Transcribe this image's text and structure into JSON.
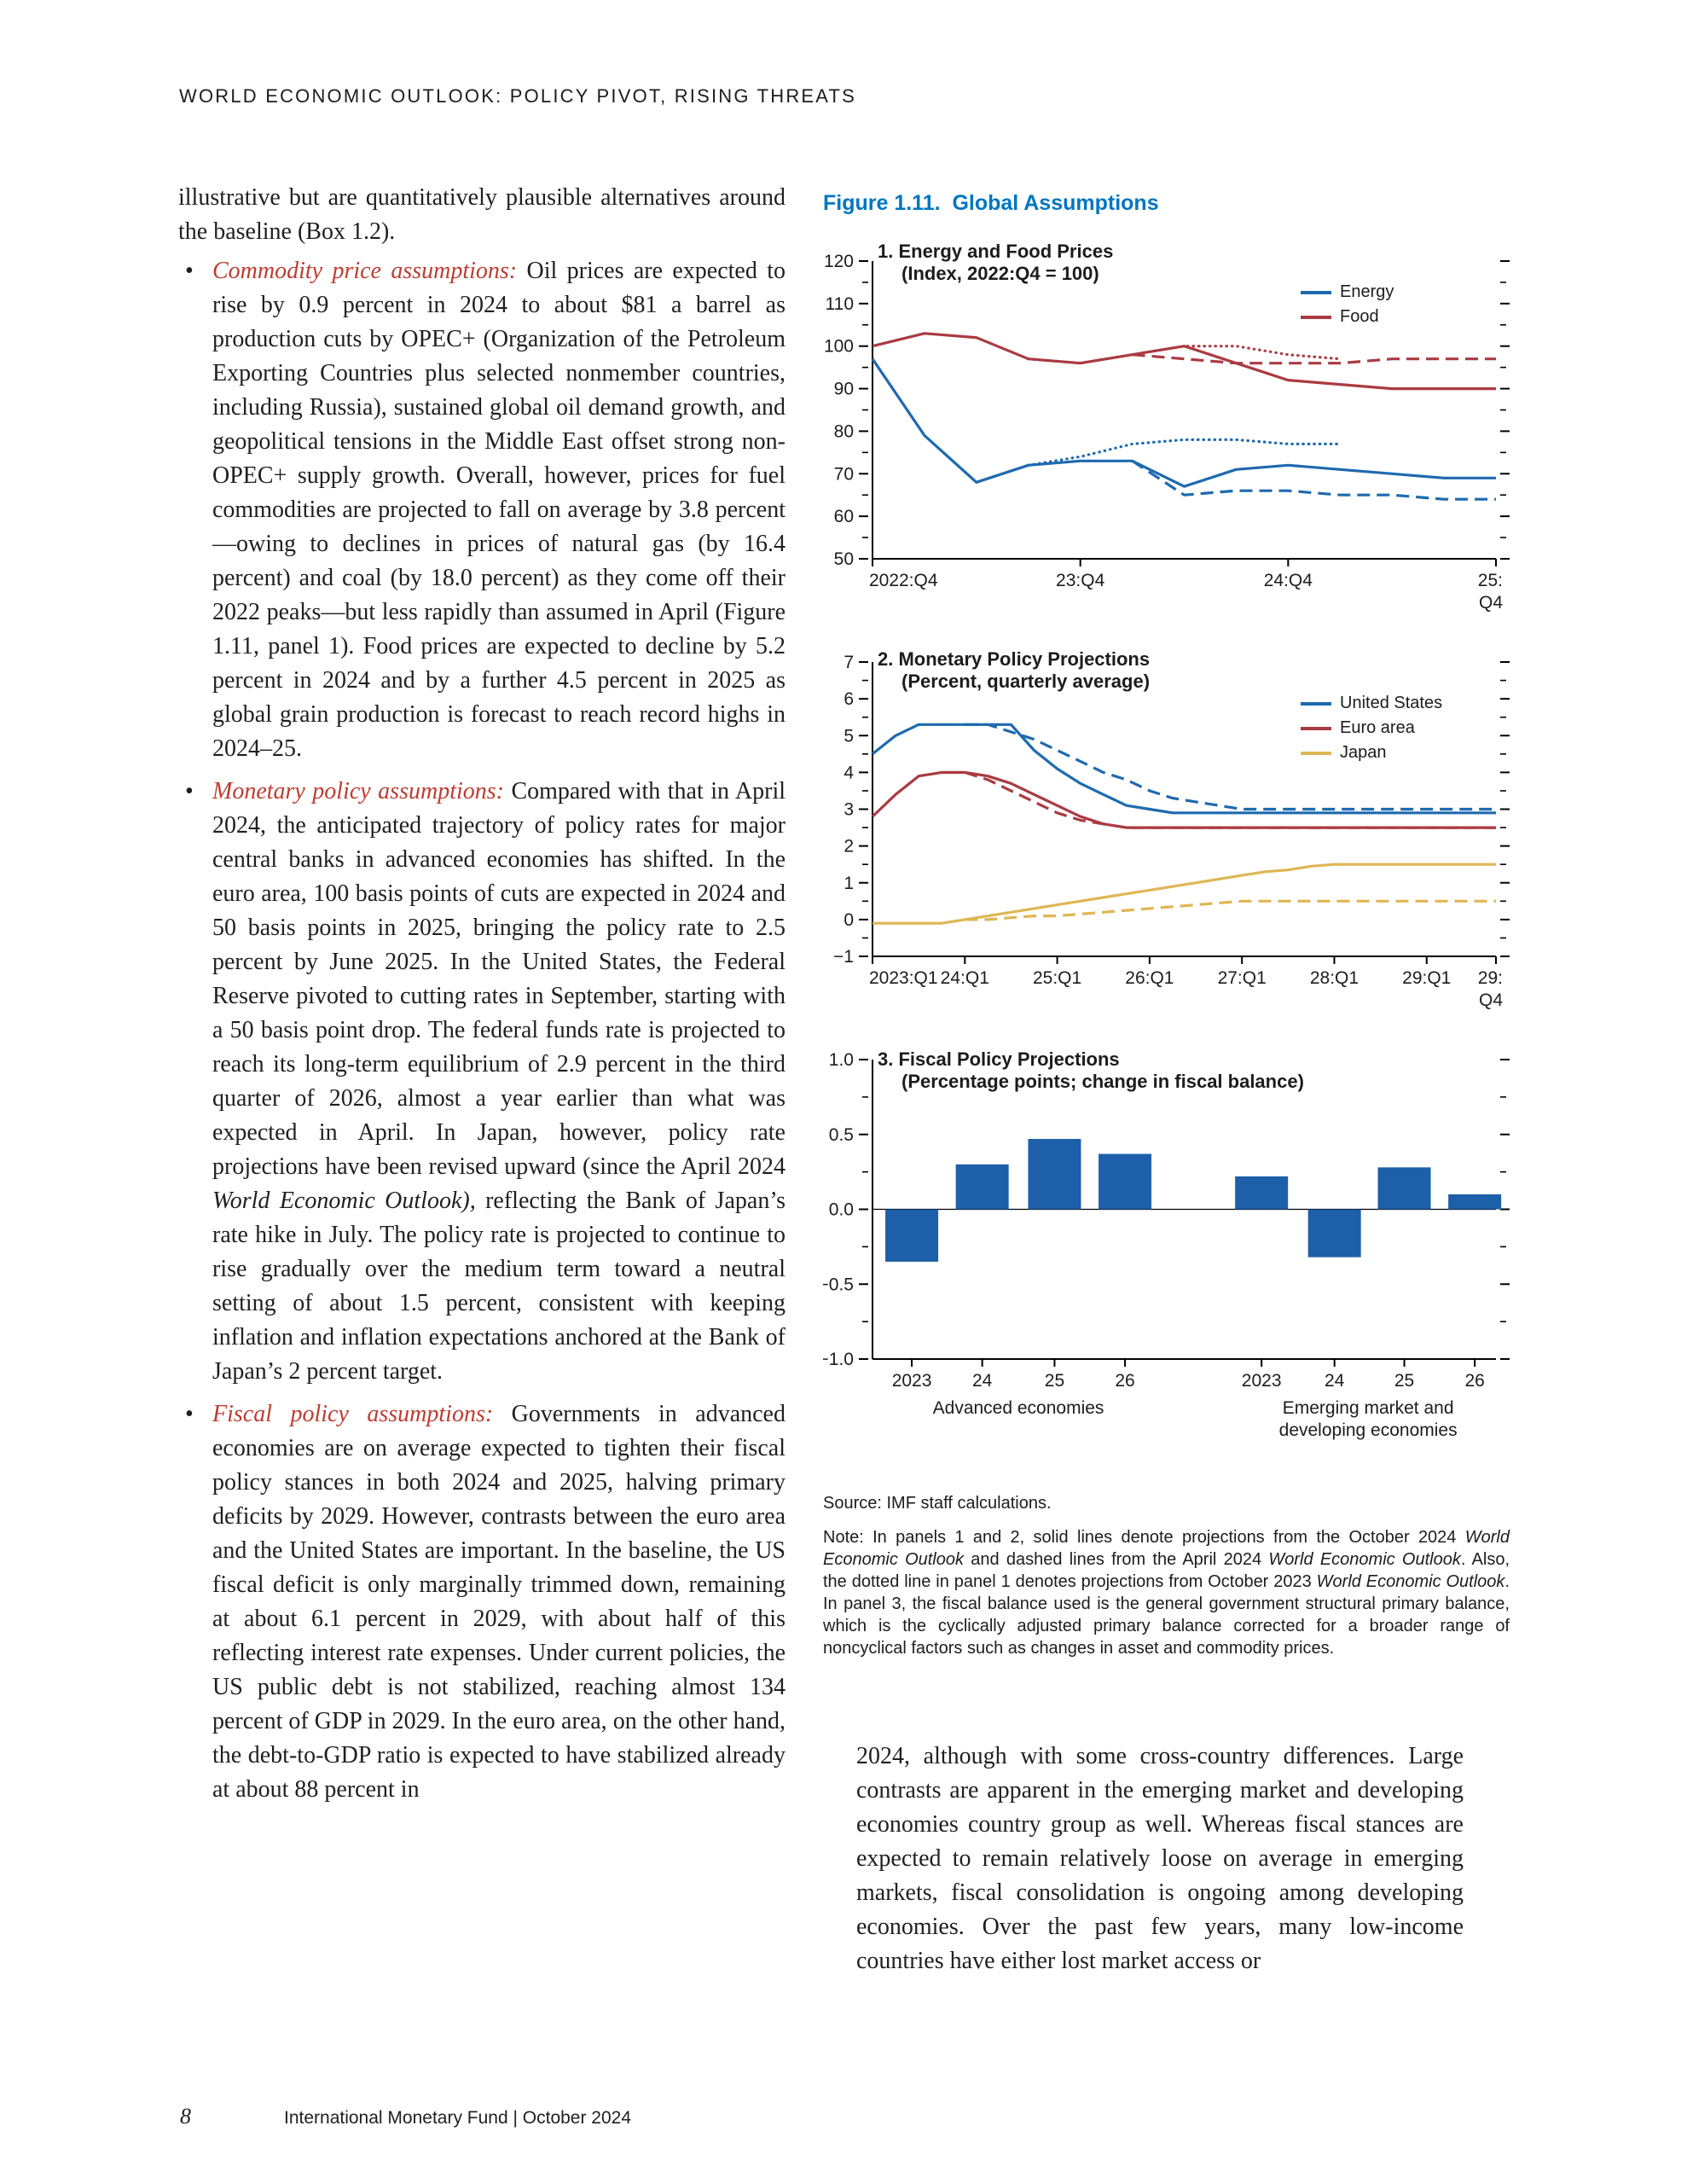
{
  "page": {
    "header": "WORLD ECONOMIC OUTLOOK: POLICY PIVOT, RISING THREATS",
    "footer": {
      "page_number": "8",
      "text": "International Monetary Fund | October 2024"
    }
  },
  "left_column": {
    "intro": "illustrative but are quantitatively plausible alternatives around the baseline (Box 1.2).",
    "bullets": [
      {
        "lead": "Commodity price assumptions:",
        "segments": [
          {
            "t": " Oil prices are expected to rise by 0.9 percent in 2024 to about $81 a barrel as production cuts by OPEC+ (Organization of the Petroleum Exporting Countries plus selected nonmember countries, including Russia), sustained global oil demand growth, and geopolitical tensions in the Middle East offset strong non-OPEC+ supply growth. Overall, however, prices for fuel commodities are projected to fall on average by 3.8 percent—owing to declines in prices of natural gas (by 16.4 percent) and coal (by 18.0 percent) as they come off their 2022 peaks—but less rapidly than assumed in April (Figure 1.11, panel 1). Food prices are expected to decline by 5.2 percent in 2024 and by a further 4.5 percent in 2025 as global grain production is forecast to reach record highs in 2024–25."
          }
        ]
      },
      {
        "lead": "Monetary policy assumptions:",
        "segments": [
          {
            "t": " Compared with that in April 2024, the anticipated trajectory of policy rates for major central banks in advanced economies has shifted. In the euro area, 100 basis points of cuts are expected in 2024 and 50 basis points in 2025, bringing the policy rate to 2.5 percent by June 2025. In the United States, the Federal Reserve pivoted to cutting rates in September, starting with a 50 basis point drop. The federal funds rate is projected to reach its long-term equilibrium of 2.9 percent in the third quarter of 2026, almost a year earlier than what was expected in April. In Japan, however, policy rate projections have been revised upward (since the April 2024 "
          },
          {
            "t": "World Economic Outlook),",
            "i": true
          },
          {
            "t": " reflecting the Bank of Japan’s rate hike in July. The policy rate is projected to continue to rise gradually over the medium term toward a neutral setting of about 1.5 percent, consistent with keeping inflation and inflation expectations anchored at the Bank of Japan’s 2 percent target."
          }
        ]
      },
      {
        "lead": "Fiscal policy assumptions:",
        "segments": [
          {
            "t": " Governments in advanced economies are on average expected to tighten their fiscal policy stances in both 2024 and 2025, halving primary deficits by 2029. However, contrasts between the euro area and the United States are important. In the baseline, the US fiscal deficit is only marginally trimmed down, remaining at about 6.1 percent in 2029, with about half of this reflecting interest rate expenses. Under current policies, the US public debt is not stabilized, reaching almost 134 percent of GDP in 2029. In the euro area, on the other hand, the debt-to-GDP ratio is expected to have stabilized already at about 88 percent in"
          }
        ]
      }
    ]
  },
  "right_column_text": "2024, although with some cross-country differences. Large contrasts are apparent in the emerging market and developing economies country group as well. Whereas fiscal stances are expected to remain relatively loose on average in emerging markets, fiscal consolidation is ongoing among developing economies. Over the past few years, many low-income countries have either lost market access or",
  "figure": {
    "title": "Figure 1.11.  Global Assumptions",
    "source": "Source: IMF staff calculations.",
    "note_segments": [
      {
        "t": "Note: In panels 1 and 2, solid lines denote projections from the October 2024 "
      },
      {
        "t": "World Economic Outlook",
        "i": true
      },
      {
        "t": " and dashed lines from the April 2024 "
      },
      {
        "t": "World Economic Outlook",
        "i": true
      },
      {
        "t": ". Also, the dotted line in panel 1 denotes projections from October 2023 "
      },
      {
        "t": "World Economic Outlook",
        "i": true
      },
      {
        "t": ". In panel 3, the fiscal balance used is the general government structural primary balance, which is the cyclically adjusted primary balance corrected for a broader range of noncyclical factors such as changes in asset and commodity prices."
      }
    ]
  },
  "colors": {
    "figure_title_blue": "#0076c0",
    "line_blue": "#1e6ab0",
    "line_red": "#ab3a42",
    "line_yellow": "#dfb654",
    "bar_blue": "#1d5fa8",
    "lead_red": "#bd3c31",
    "text": "#1f1f1f"
  },
  "chart_data": [
    {
      "type": "line",
      "panel_label": "1. Energy and Food Prices",
      "subtitle": "(Index, 2022:Q4 = 100)",
      "ylim": [
        50,
        120
      ],
      "y_minor_step": 5,
      "yticks": [
        {
          "v": 50,
          "label": "50"
        },
        {
          "v": 60,
          "label": "60"
        },
        {
          "v": 70,
          "label": "70"
        },
        {
          "v": 80,
          "label": "80"
        },
        {
          "v": 90,
          "label": "90"
        },
        {
          "v": 100,
          "label": "100"
        },
        {
          "v": 110,
          "label": "110"
        },
        {
          "v": 120,
          "label": "120"
        }
      ],
      "x_max": 12,
      "x_ticks": [
        {
          "i": 0,
          "label": "2022:Q4",
          "align": "start"
        },
        {
          "i": 4,
          "label": "23:Q4"
        },
        {
          "i": 8,
          "label": "24:Q4"
        },
        {
          "i": 12,
          "label": [
            "25:",
            "Q4"
          ],
          "align": "end"
        }
      ],
      "legend": [
        {
          "label": "Energy",
          "color": "#1e6ab0"
        },
        {
          "label": "Food",
          "color": "#ab3a42"
        }
      ],
      "series": [
        {
          "key": "energy-october-2024",
          "color": "#1e6ab0",
          "style": "solid",
          "x0": 0,
          "values": [
            97,
            79,
            68,
            72,
            73,
            73,
            67,
            71,
            72,
            71,
            70,
            69,
            69
          ]
        },
        {
          "key": "energy-april-2024",
          "color": "#1e6ab0",
          "style": "dashed",
          "x0": 5,
          "values": [
            73,
            65,
            66,
            66,
            65,
            65,
            64,
            64
          ]
        },
        {
          "key": "energy-october-2023",
          "color": "#1e6ab0",
          "style": "dotted",
          "x0": 3,
          "values": [
            72,
            74,
            77,
            78,
            78,
            77,
            77
          ]
        },
        {
          "key": "food-october-2024",
          "color": "#ab3a42",
          "style": "solid",
          "x0": 0,
          "values": [
            100,
            103,
            102,
            97,
            96,
            98,
            100,
            96,
            92,
            91,
            90,
            90,
            90
          ]
        },
        {
          "key": "food-april-2024",
          "color": "#ab3a42",
          "style": "dashed",
          "x0": 5,
          "values": [
            98,
            97,
            96,
            96,
            96,
            97,
            97,
            97
          ]
        },
        {
          "key": "food-october-2023",
          "color": "#ab3a42",
          "style": "dotted",
          "x0": 3,
          "values": [
            97,
            96,
            98,
            100,
            100,
            98,
            97
          ]
        }
      ]
    },
    {
      "type": "line",
      "panel_label": "2. Monetary Policy Projections",
      "subtitle": "(Percent, quarterly average)",
      "ylim": [
        -1,
        7
      ],
      "y_minor_step": 0.5,
      "yticks": [
        {
          "v": -1,
          "label": "−1"
        },
        {
          "v": 0,
          "label": "0"
        },
        {
          "v": 1,
          "label": "1"
        },
        {
          "v": 2,
          "label": "2"
        },
        {
          "v": 3,
          "label": "3"
        },
        {
          "v": 4,
          "label": "4"
        },
        {
          "v": 5,
          "label": "5"
        },
        {
          "v": 6,
          "label": "6"
        },
        {
          "v": 7,
          "label": "7"
        }
      ],
      "x_max": 27,
      "x_ticks": [
        {
          "i": 0,
          "label": "2023:Q1",
          "align": "start"
        },
        {
          "i": 4,
          "label": "24:Q1"
        },
        {
          "i": 8,
          "label": "25:Q1"
        },
        {
          "i": 12,
          "label": "26:Q1"
        },
        {
          "i": 16,
          "label": "27:Q1"
        },
        {
          "i": 20,
          "label": "28:Q1"
        },
        {
          "i": 24,
          "label": "29:Q1"
        },
        {
          "i": 27,
          "label": [
            "29:",
            "Q4"
          ],
          "align": "end"
        }
      ],
      "legend": [
        {
          "label": "United States",
          "color": "#1e6ab0"
        },
        {
          "label": "Euro area",
          "color": "#ab3a42"
        },
        {
          "label": "Japan",
          "color": "#dfb654"
        }
      ],
      "series": [
        {
          "key": "united-states-october-2024",
          "color": "#1e6ab0",
          "style": "solid",
          "x0": 0,
          "values": [
            4.5,
            5.0,
            5.3,
            5.3,
            5.3,
            5.3,
            5.3,
            4.6,
            4.1,
            3.7,
            3.4,
            3.1,
            3.0,
            2.9,
            2.9,
            2.9,
            2.9,
            2.9,
            2.9,
            2.9,
            2.9,
            2.9,
            2.9,
            2.9,
            2.9,
            2.9,
            2.9,
            2.9
          ]
        },
        {
          "key": "united-states-april-2024",
          "color": "#1e6ab0",
          "style": "dashed",
          "x0": 4,
          "values": [
            5.3,
            5.3,
            5.1,
            4.9,
            4.6,
            4.3,
            4.0,
            3.8,
            3.5,
            3.3,
            3.2,
            3.1,
            3.0,
            3.0,
            3.0,
            3.0,
            3.0,
            3.0,
            3.0,
            3.0,
            3.0,
            3.0,
            3.0,
            3.0
          ]
        },
        {
          "key": "euro-area-october-2024",
          "color": "#ab3a42",
          "style": "solid",
          "x0": 0,
          "values": [
            2.8,
            3.4,
            3.9,
            4.0,
            4.0,
            3.9,
            3.7,
            3.4,
            3.1,
            2.8,
            2.6,
            2.5,
            2.5,
            2.5,
            2.5,
            2.5,
            2.5,
            2.5,
            2.5,
            2.5,
            2.5,
            2.5,
            2.5,
            2.5,
            2.5,
            2.5,
            2.5,
            2.5
          ]
        },
        {
          "key": "euro-area-april-2024",
          "color": "#ab3a42",
          "style": "dashed",
          "x0": 4,
          "values": [
            4.0,
            3.8,
            3.5,
            3.2,
            2.9,
            2.7,
            2.6,
            2.5,
            2.5,
            2.5,
            2.5,
            2.5,
            2.5,
            2.5,
            2.5,
            2.5,
            2.5,
            2.5,
            2.5,
            2.5,
            2.5,
            2.5,
            2.5,
            2.5
          ]
        },
        {
          "key": "japan-october-2024",
          "color": "#dfb654",
          "style": "solid",
          "x0": 0,
          "values": [
            -0.1,
            -0.1,
            -0.1,
            -0.1,
            0.0,
            0.1,
            0.2,
            0.3,
            0.4,
            0.5,
            0.6,
            0.7,
            0.8,
            0.9,
            1.0,
            1.1,
            1.2,
            1.3,
            1.35,
            1.45,
            1.5,
            1.5,
            1.5,
            1.5,
            1.5,
            1.5,
            1.5,
            1.5
          ]
        },
        {
          "key": "japan-april-2024",
          "color": "#dfb654",
          "style": "dashed",
          "x0": 4,
          "values": [
            0.0,
            0.0,
            0.05,
            0.1,
            0.1,
            0.15,
            0.2,
            0.25,
            0.3,
            0.35,
            0.4,
            0.45,
            0.5,
            0.5,
            0.5,
            0.5,
            0.5,
            0.5,
            0.5,
            0.5,
            0.5,
            0.5,
            0.5,
            0.5
          ]
        }
      ]
    },
    {
      "type": "bar",
      "panel_label": "3. Fiscal Policy Projections",
      "subtitle": "(Percentage points; change in fiscal balance)",
      "ylim": [
        -1,
        1
      ],
      "y_minor_step": 0.25,
      "yticks": [
        {
          "v": -1,
          "label": "−1.0"
        },
        {
          "v": -0.5,
          "label": "−0.5"
        },
        {
          "v": 0,
          "label": "0.0"
        },
        {
          "v": 0.5,
          "label": "0.5"
        },
        {
          "v": 1,
          "label": "1.0"
        }
      ],
      "bar_color": "#1d5fa8",
      "groups": [
        {
          "name": "Advanced economies",
          "name_lines": [
            "Advanced economies"
          ],
          "categories": [
            "2023",
            "24",
            "25",
            "26"
          ],
          "values": [
            -0.35,
            0.3,
            0.47,
            0.37
          ]
        },
        {
          "name": "Emerging market and developing economies",
          "name_lines": [
            "Emerging market and",
            "developing economies"
          ],
          "categories": [
            "2023",
            "24",
            "25",
            "26"
          ],
          "values": [
            0.22,
            -0.32,
            0.28,
            0.1
          ]
        }
      ]
    }
  ]
}
